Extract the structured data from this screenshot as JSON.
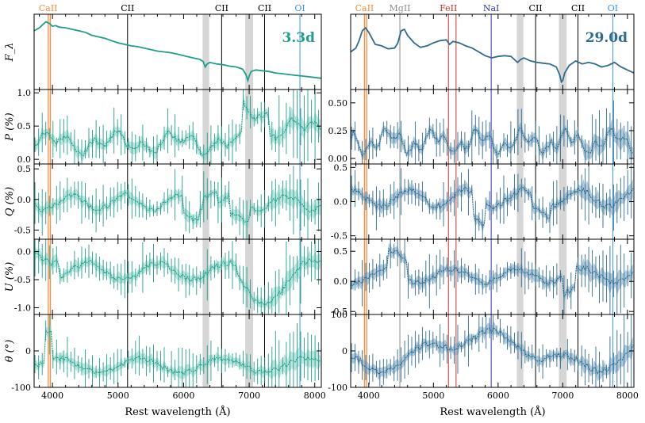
{
  "figure": {
    "xlabel": "Rest wavelength (Å)"
  },
  "colors": {
    "green": "#1f9e8c",
    "green_band": "#8fd4c6",
    "blue": "#2e6b8c",
    "blue_band": "#7fa9c4",
    "grey_band": "#c8c8c8"
  },
  "chart_data": [
    {
      "type": "line",
      "id": "left",
      "epoch_label": "3.3d",
      "epoch_color": "#1f9e8c",
      "xlim": [
        3720,
        8100
      ],
      "xticks": [
        4000,
        5000,
        6000,
        7000,
        8000
      ],
      "xtick_labels": [
        "4000",
        "5000",
        "6000",
        "7000",
        "8000"
      ],
      "bands": [
        [
          3935,
          3980
        ],
        [
          6290,
          6390
        ],
        [
          6940,
          7060
        ]
      ],
      "lines": [
        {
          "name": "CaII",
          "x": 3934,
          "color": "#f08c3c"
        },
        {
          "name": "CaII",
          "x": 3969,
          "color": "#f08c3c",
          "label": false
        },
        {
          "name": "CII",
          "x": 5145,
          "color": "#000000"
        },
        {
          "name": "CII",
          "x": 6580,
          "color": "#000000"
        },
        {
          "name": "CII",
          "x": 7235,
          "color": "#000000"
        },
        {
          "name": "OI",
          "x": 7774,
          "color": "#3c96dc"
        }
      ],
      "panels": [
        {
          "name": "F",
          "ylabel": "F_λ",
          "ylim": [
            0,
            1
          ],
          "yticks": [],
          "ytick_labels": [],
          "flux": {
            "x": [
              3720,
              3800,
              3850,
              3900,
              3950,
              4000,
              4050,
              4100,
              4200,
              4300,
              4400,
              4500,
              4600,
              4700,
              4800,
              4900,
              5000,
              5100,
              5200,
              5300,
              5400,
              5500,
              5600,
              5700,
              5800,
              5900,
              6000,
              6100,
              6200,
              6250,
              6300,
              6330,
              6360,
              6400,
              6500,
              6600,
              6700,
              6800,
              6900,
              6950,
              6980,
              7000,
              7030,
              7100,
              7200,
              7300,
              7400,
              7500,
              7600,
              7700,
              7800,
              7900,
              8000,
              8100
            ],
            "y": [
              0.78,
              0.82,
              0.86,
              0.9,
              0.88,
              0.84,
              0.85,
              0.83,
              0.82,
              0.8,
              0.78,
              0.76,
              0.72,
              0.7,
              0.68,
              0.65,
              0.62,
              0.6,
              0.58,
              0.57,
              0.55,
              0.53,
              0.51,
              0.5,
              0.49,
              0.47,
              0.45,
              0.43,
              0.41,
              0.4,
              0.37,
              0.3,
              0.34,
              0.36,
              0.34,
              0.33,
              0.31,
              0.3,
              0.27,
              0.2,
              0.12,
              0.18,
              0.24,
              0.26,
              0.25,
              0.24,
              0.22,
              0.21,
              0.2,
              0.19,
              0.18,
              0.17,
              0.16,
              0.15
            ]
          }
        },
        {
          "name": "P",
          "ylabel": "P (%)",
          "ylim": [
            -0.07,
            1.05
          ],
          "yticks": [
            0,
            0.5,
            1.0
          ],
          "ytick_labels": [
            "0.0",
            "0.5",
            "1.0"
          ],
          "seed": 11,
          "mode": "P"
        },
        {
          "name": "Q",
          "ylabel": "Q (%)",
          "ylim": [
            -0.65,
            0.58
          ],
          "yticks": [
            -0.5,
            0,
            0.5
          ],
          "ytick_labels": [
            "-0.5",
            "0.0",
            "0.5"
          ],
          "seed": 23,
          "mode": "Q"
        },
        {
          "name": "U",
          "ylabel": "U (%)",
          "ylim": [
            -1.12,
            0.22
          ],
          "yticks": [
            -1.0,
            -0.5,
            0
          ],
          "ytick_labels": [
            "-1.0",
            "-0.5",
            "0.0"
          ],
          "seed": 37,
          "mode": "U"
        },
        {
          "name": "theta",
          "ylabel": "θ (°)",
          "ylim": [
            -100,
            100
          ],
          "yticks": [
            -100,
            0
          ],
          "ytick_labels": [
            "-100",
            "0"
          ],
          "seed": 41,
          "mode": "T"
        }
      ]
    },
    {
      "type": "line",
      "id": "right",
      "epoch_label": "29.0d",
      "epoch_color": "#2e6b8c",
      "xlim": [
        3720,
        8100
      ],
      "xticks": [
        4000,
        5000,
        6000,
        7000,
        8000
      ],
      "xtick_labels": [
        "4000",
        "5000",
        "6000",
        "7000",
        "8000"
      ],
      "bands": [
        [
          3920,
          3975
        ],
        [
          6290,
          6390
        ],
        [
          6940,
          7060
        ]
      ],
      "lines": [
        {
          "name": "CaII",
          "x": 3934,
          "color": "#f08c3c"
        },
        {
          "name": "CaII",
          "x": 3969,
          "color": "#f08c3c",
          "label": false
        },
        {
          "name": "MgII",
          "x": 4481,
          "color": "#8c8c8c"
        },
        {
          "name": "FeII",
          "x": 5232,
          "color": "#c83232"
        },
        {
          "name": "FeII",
          "x": 5350,
          "color": "#c83232",
          "label": false
        },
        {
          "name": "NaI",
          "x": 5893,
          "color": "#3232b4"
        },
        {
          "name": "CII",
          "x": 6580,
          "color": "#000000"
        },
        {
          "name": "CII",
          "x": 7235,
          "color": "#000000"
        },
        {
          "name": "OI",
          "x": 7774,
          "color": "#3c96dc"
        }
      ],
      "panels": [
        {
          "name": "F",
          "ylabel": "",
          "ylim": [
            0,
            1
          ],
          "yticks": [],
          "ytick_labels": [],
          "flux": {
            "x": [
              3720,
              3800,
              3850,
              3900,
              3950,
              4000,
              4050,
              4100,
              4200,
              4300,
              4400,
              4450,
              4500,
              4550,
              4600,
              4700,
              4800,
              4900,
              5000,
              5100,
              5200,
              5250,
              5300,
              5400,
              5500,
              5600,
              5700,
              5800,
              5900,
              6000,
              6100,
              6200,
              6250,
              6300,
              6350,
              6400,
              6500,
              6600,
              6700,
              6800,
              6900,
              6950,
              6980,
              7000,
              7030,
              7100,
              7200,
              7300,
              7400,
              7500,
              7600,
              7700,
              7800,
              7900,
              8000,
              8100
            ],
            "y": [
              0.5,
              0.55,
              0.65,
              0.78,
              0.82,
              0.76,
              0.68,
              0.6,
              0.58,
              0.54,
              0.55,
              0.62,
              0.78,
              0.8,
              0.72,
              0.62,
              0.56,
              0.58,
              0.62,
              0.65,
              0.66,
              0.6,
              0.64,
              0.62,
              0.58,
              0.55,
              0.5,
              0.45,
              0.42,
              0.44,
              0.45,
              0.44,
              0.4,
              0.36,
              0.4,
              0.42,
              0.38,
              0.36,
              0.35,
              0.34,
              0.3,
              0.2,
              0.1,
              0.12,
              0.22,
              0.32,
              0.38,
              0.34,
              0.36,
              0.34,
              0.3,
              0.32,
              0.36,
              0.3,
              0.26,
              0.22
            ]
          }
        },
        {
          "name": "P",
          "ylabel": "",
          "ylim": [
            -0.05,
            0.62
          ],
          "yticks": [
            0,
            0.25,
            0.5
          ],
          "ytick_labels": [
            "0.00",
            "0.25",
            "0.50"
          ],
          "seed": 53,
          "mode": "P2"
        },
        {
          "name": "Q",
          "ylabel": "",
          "ylim": [
            -0.55,
            0.55
          ],
          "yticks": [
            -0.5,
            0,
            0.5
          ],
          "ytick_labels": [
            "-0.5",
            "0.0",
            "0.5"
          ],
          "seed": 67,
          "mode": "Q2"
        },
        {
          "name": "U",
          "ylabel": "",
          "ylim": [
            -0.55,
            0.7
          ],
          "yticks": [
            -0.5,
            0,
            0.5
          ],
          "ytick_labels": [
            "-0.5",
            "0.0",
            "0.5"
          ],
          "seed": 71,
          "mode": "U2"
        },
        {
          "name": "theta",
          "ylabel": "",
          "ylim": [
            -100,
            100
          ],
          "yticks": [
            -100,
            0,
            100
          ],
          "ytick_labels": [
            "-100",
            "0",
            "100"
          ],
          "seed": 89,
          "mode": "T2"
        }
      ]
    }
  ]
}
